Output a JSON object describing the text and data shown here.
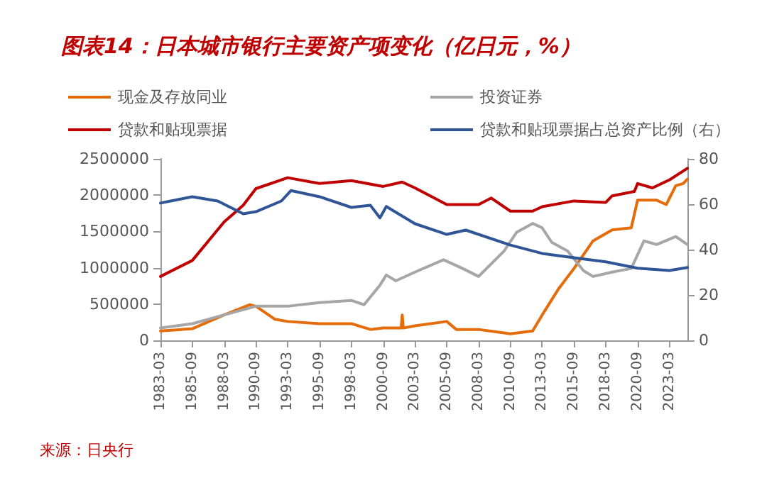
{
  "chart_data": {
    "type": "line",
    "title": "图表14：日本城市银行主要资产项变化（亿日元，%）",
    "xlim": [
      "1983-03",
      "2024-08"
    ],
    "xticks": [
      "1983-03",
      "1985-09",
      "1988-03",
      "1990-09",
      "1993-03",
      "1995-09",
      "1998-03",
      "2000-09",
      "2003-03",
      "2005-09",
      "2008-03",
      "2010-09",
      "2013-03",
      "2015-09",
      "2018-03",
      "2020-09",
      "2023-03"
    ],
    "ylim": [
      0,
      2500000
    ],
    "yticks": [
      0,
      500000,
      1000000,
      1500000,
      2000000,
      2500000
    ],
    "y2lim": [
      0,
      80
    ],
    "y2ticks": [
      0,
      20,
      40,
      60,
      80
    ],
    "legend": "top",
    "grid": false,
    "marker": "none",
    "line_style": "solid",
    "annotations": [
      "来源：日央行"
    ],
    "series": [
      {
        "name": "现金及存放同业",
        "color": "#e46c0a",
        "x": [
          "1983-03",
          "1985-09",
          "1988-03",
          "1990-03",
          "1990-09",
          "1992-03",
          "1993-03",
          "1995-09",
          "1998-03",
          "1999-09",
          "2000-09",
          "2002-02",
          "2002-03",
          "2002-04",
          "2003-03",
          "2005-09",
          "2006-06",
          "2008-03",
          "2010-09",
          "2012-06",
          "2013-03",
          "2014-06",
          "2015-09",
          "2017-03",
          "2018-09",
          "2020-03",
          "2020-09",
          "2022-03",
          "2022-12",
          "2023-09",
          "2024-04",
          "2024-08"
        ],
        "values": [
          130000,
          160000,
          350000,
          490000,
          470000,
          290000,
          260000,
          230000,
          230000,
          150000,
          170000,
          170000,
          350000,
          170000,
          200000,
          260000,
          150000,
          150000,
          90000,
          130000,
          350000,
          700000,
          990000,
          1370000,
          1520000,
          1550000,
          1930000,
          1930000,
          1870000,
          2130000,
          2160000,
          2220000
        ]
      },
      {
        "name": "投资证券",
        "color": "#a6a6a6",
        "x": [
          "1983-03",
          "1985-09",
          "1988-03",
          "1990-09",
          "1993-03",
          "1995-09",
          "1998-03",
          "1999-03",
          "2000-06",
          "2000-12",
          "2001-09",
          "2003-03",
          "2005-06",
          "2006-12",
          "2008-03",
          "2010-03",
          "2011-03",
          "2012-06",
          "2013-03",
          "2013-12",
          "2015-03",
          "2016-06",
          "2017-03",
          "2018-09",
          "2020-03",
          "2021-03",
          "2022-03",
          "2023-09",
          "2024-08"
        ],
        "values": [
          170000,
          230000,
          350000,
          470000,
          470000,
          520000,
          550000,
          490000,
          760000,
          900000,
          820000,
          940000,
          1110000,
          990000,
          880000,
          1230000,
          1490000,
          1610000,
          1550000,
          1350000,
          1230000,
          960000,
          880000,
          940000,
          990000,
          1370000,
          1320000,
          1430000,
          1320000
        ]
      },
      {
        "name": "贷款和贴现票据",
        "color": "#c00000",
        "x": [
          "1983-03",
          "1985-09",
          "1988-03",
          "1989-09",
          "1990-09",
          "1993-03",
          "1995-09",
          "1998-03",
          "2000-09",
          "2002-03",
          "2003-03",
          "2005-09",
          "2008-03",
          "2009-03",
          "2010-09",
          "2012-06",
          "2013-03",
          "2015-09",
          "2018-03",
          "2018-09",
          "2020-06",
          "2020-09",
          "2021-11",
          "2023-03",
          "2024-08"
        ],
        "values": [
          880000,
          1100000,
          1630000,
          1860000,
          2090000,
          2240000,
          2160000,
          2200000,
          2120000,
          2180000,
          2100000,
          1870000,
          1870000,
          1960000,
          1780000,
          1780000,
          1840000,
          1920000,
          1900000,
          1990000,
          2050000,
          2160000,
          2100000,
          2210000,
          2370000
        ]
      },
      {
        "name": "贷款和贴现票据占总资产比例（右）",
        "color": "#2f5597",
        "axis": "y2",
        "x": [
          "1983-03",
          "1985-09",
          "1987-09",
          "1989-09",
          "1990-09",
          "1992-09",
          "1993-06",
          "1995-09",
          "1998-03",
          "1999-09",
          "2000-06",
          "2000-12",
          "2003-03",
          "2005-09",
          "2007-03",
          "2010-09",
          "2013-03",
          "2015-09",
          "2018-03",
          "2020-09",
          "2023-03",
          "2024-08"
        ],
        "values": [
          60.5,
          63.3,
          61.4,
          55.8,
          56.7,
          61.4,
          66,
          63.3,
          58.6,
          59.5,
          54,
          59,
          51.4,
          46.7,
          48.6,
          42,
          38.3,
          36.4,
          34.6,
          31.8,
          30.8,
          32.1
        ]
      }
    ]
  }
}
